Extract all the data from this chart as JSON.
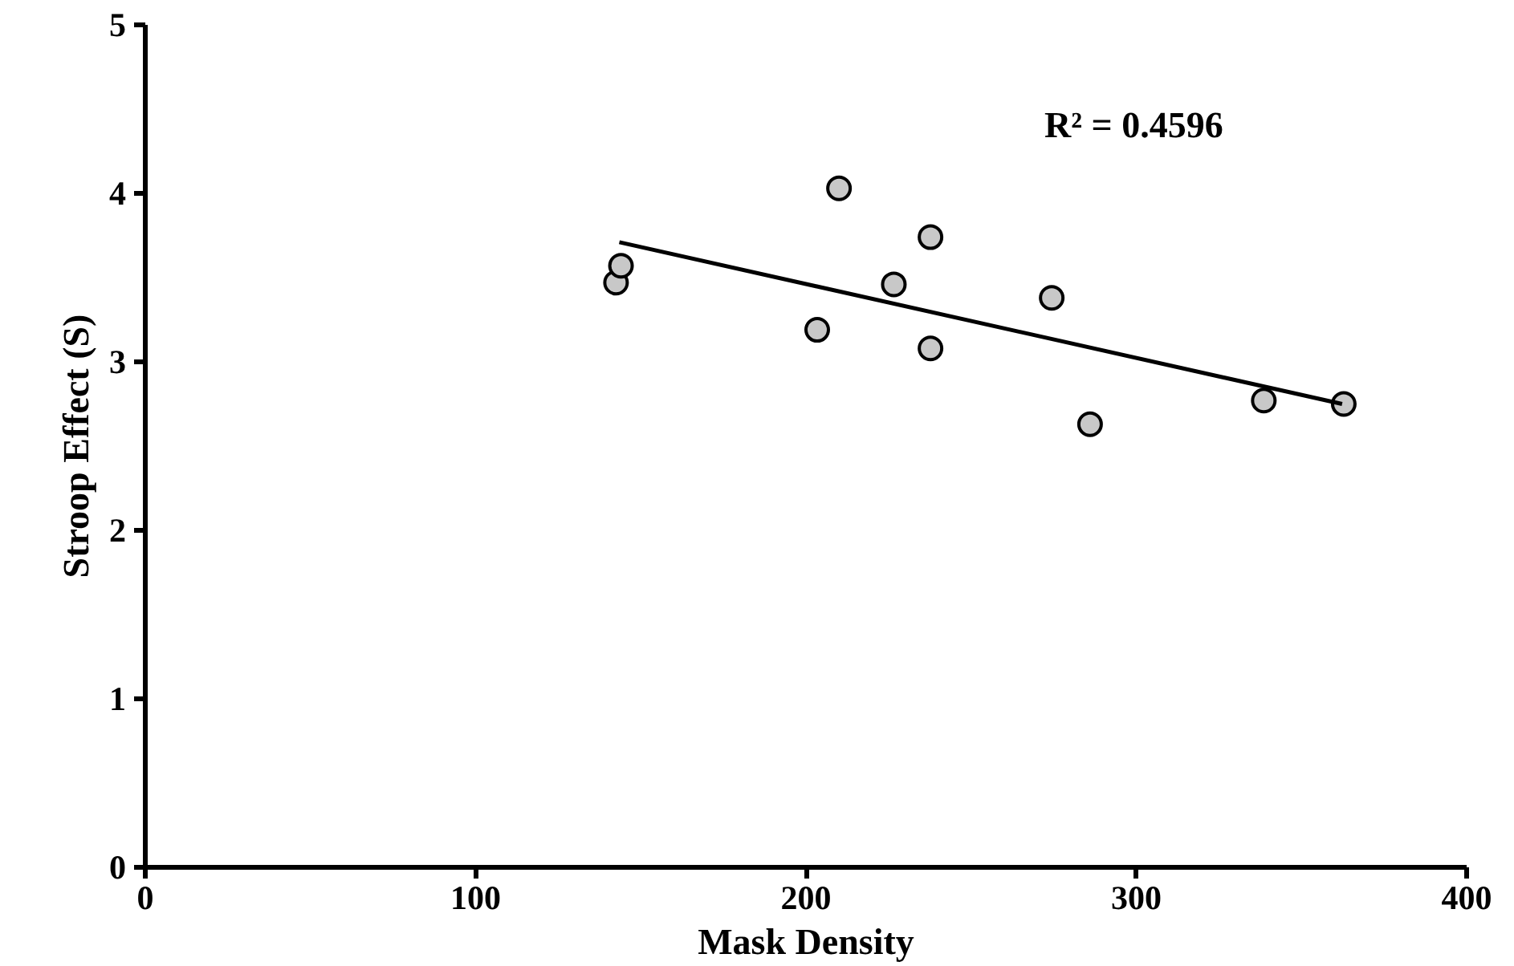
{
  "chart_data": {
    "type": "scatter",
    "xlabel": "Mask Density",
    "ylabel": "Stroop Effect (S)",
    "annotations": [
      "R² = 0.4596"
    ],
    "series": [
      {
        "color": "#c8c8c8",
        "marker": "circle",
        "x": [
          142.5,
          144,
          203.4,
          210,
          226.6,
          237.7,
          237.7,
          274.4,
          286,
          338.6,
          362.8
        ],
        "values": [
          3.47,
          3.57,
          3.19,
          4.03,
          3.46,
          3.74,
          3.08,
          3.38,
          2.63,
          2.77,
          2.75
        ]
      },
      {
        "type": "line",
        "color": "#000000",
        "marker": "none",
        "line_style": "solid",
        "x": [
          143.5,
          362.3
        ],
        "values": [
          3.71,
          2.75
        ]
      }
    ],
    "xlim": [
      0,
      400
    ],
    "ylim": [
      0,
      5
    ],
    "xticks": [
      0,
      100,
      200,
      300,
      400
    ],
    "yticks": [
      0,
      1,
      2,
      3,
      4,
      5
    ],
    "grid": false
  }
}
